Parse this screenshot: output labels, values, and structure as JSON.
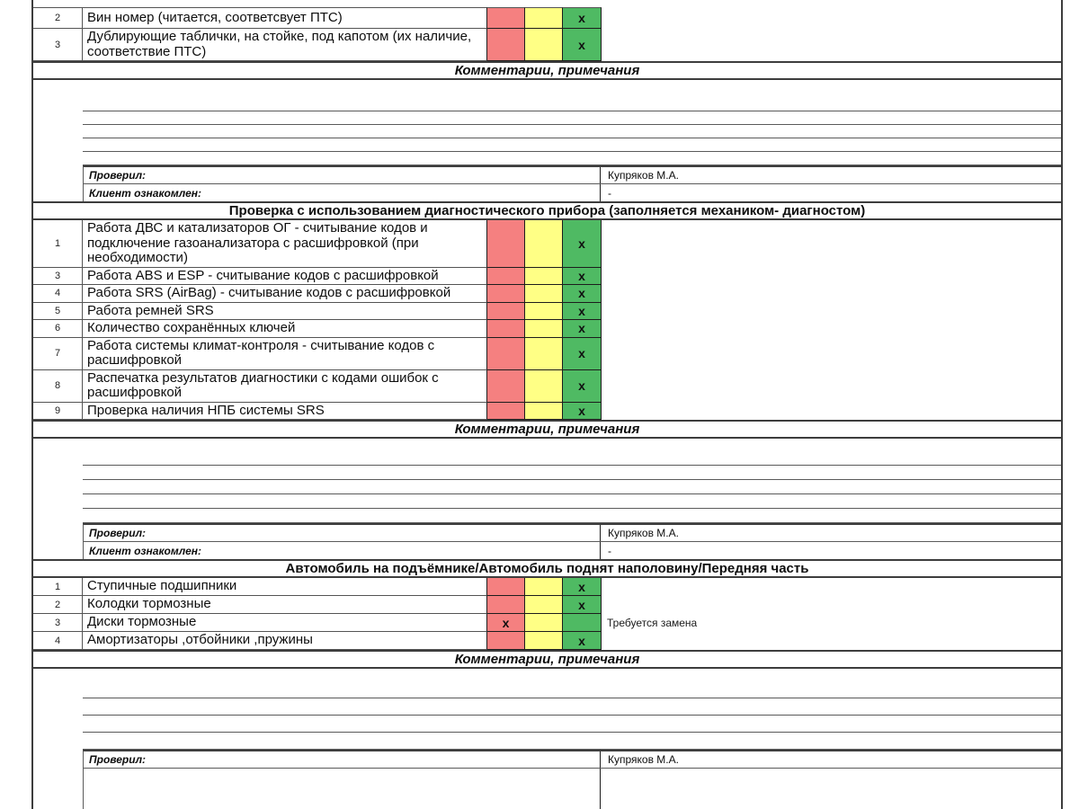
{
  "labels": {
    "comments_header": "Комментарии, примечания",
    "checked_by": "Проверил:",
    "client_acknowledged": "Клиент ознакомлен:"
  },
  "check_mark": "x",
  "status_colors": {
    "bad": "#F58080",
    "warn": "#FFFF85",
    "good": "#4FBA63"
  },
  "sections": [
    {
      "title": "",
      "rows": [
        {
          "num": "2",
          "text": "Вин номер (читается, соответсвует ПТС)",
          "mark": "good",
          "comment": ""
        },
        {
          "num": "3",
          "text": "Дублирующие таблички, на стойке, под капотом (их наличие, соответствие ПТС)",
          "mark": "good",
          "comment": ""
        }
      ],
      "comment_rows": 5,
      "sign": {
        "checked_by": "Купряков М.А.",
        "client": "-"
      }
    },
    {
      "title": "Проверка с использованием диагностического прибора (заполняется механиком- диагностом)",
      "rows": [
        {
          "num": "1",
          "text": "Работа ДВС и катализаторов ОГ - считывание кодов и подключение газоанализатора с расшифровкой (при необходимости)",
          "mark": "good",
          "comment": ""
        },
        {
          "num": "3",
          "text": "Работа ABS и ESP - считывание кодов с расшифровкой",
          "mark": "good",
          "comment": ""
        },
        {
          "num": "4",
          "text": "Работа SRS (AirBag) - считывание кодов с расшифровкой",
          "mark": "good",
          "comment": ""
        },
        {
          "num": "5",
          "text": "Работа ремней SRS",
          "mark": "good",
          "comment": ""
        },
        {
          "num": "6",
          "text": "Количество сохранённых ключей",
          "mark": "good",
          "comment": ""
        },
        {
          "num": "7",
          "text": "Работа системы климат-контроля - считывание кодов с расшифровкой",
          "mark": "good",
          "comment": ""
        },
        {
          "num": "8",
          "text": "Распечатка результатов диагностики с кодами ошибок с расшифровкой",
          "mark": "good",
          "comment": ""
        },
        {
          "num": "9",
          "text": "Проверка наличия НПБ системы SRS",
          "mark": "good",
          "comment": ""
        }
      ],
      "comment_rows": 5,
      "sign": {
        "checked_by": "Купряков М.А.",
        "client": "-"
      }
    },
    {
      "title": "Автомобиль на подъёмнике/Автомобиль поднят наполовину/Передняя часть",
      "rows": [
        {
          "num": "1",
          "text": "Ступичные подшипники",
          "mark": "good",
          "comment": ""
        },
        {
          "num": "2",
          "text": "Колодки тормозные",
          "mark": "good",
          "comment": ""
        },
        {
          "num": "3",
          "text": "Диски тормозные",
          "mark": "bad",
          "comment": "Требуется замена"
        },
        {
          "num": "4",
          "text": "Амортизаторы ,отбойники ,пружины",
          "mark": "good",
          "comment": ""
        }
      ],
      "comment_rows": 4,
      "sign": {
        "checked_by": "Купряков М.А.",
        "client": ""
      },
      "client_row_partial": true
    }
  ]
}
